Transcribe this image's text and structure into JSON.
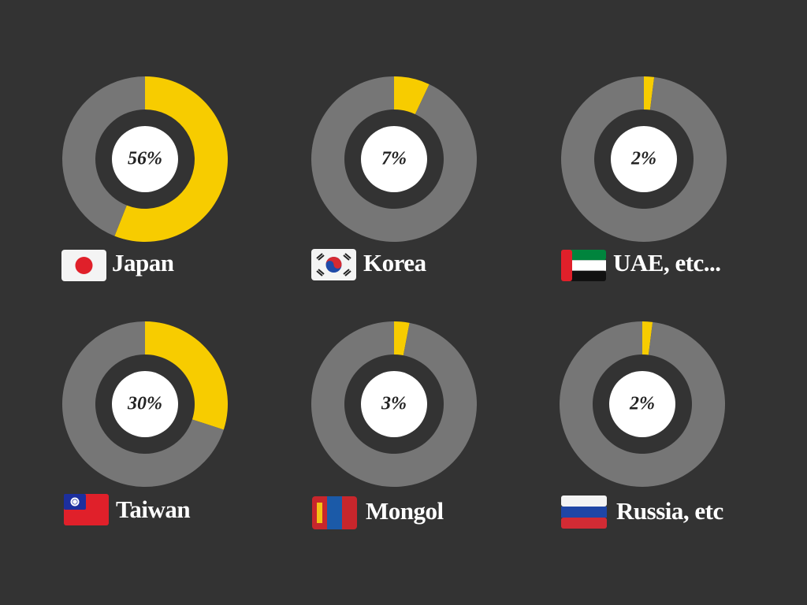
{
  "chart_data": [
    {
      "type": "pie",
      "title": "Japan",
      "values": [
        56,
        44
      ],
      "value_labels": [
        "56%",
        null
      ],
      "colors": [
        "#f7cc00",
        "#767676"
      ]
    },
    {
      "type": "pie",
      "title": "Korea",
      "values": [
        7,
        93
      ],
      "value_labels": [
        "7%",
        null
      ],
      "colors": [
        "#f7cc00",
        "#767676"
      ]
    },
    {
      "type": "pie",
      "title": "UAE, etc...",
      "values": [
        2,
        98
      ],
      "value_labels": [
        "2%",
        null
      ],
      "colors": [
        "#f7cc00",
        "#767676"
      ]
    },
    {
      "type": "pie",
      "title": "Taiwan",
      "values": [
        30,
        70
      ],
      "value_labels": [
        "30%",
        null
      ],
      "colors": [
        "#f7cc00",
        "#767676"
      ]
    },
    {
      "type": "pie",
      "title": "Mongol",
      "values": [
        3,
        97
      ],
      "value_labels": [
        "3%",
        null
      ],
      "colors": [
        "#f7cc00",
        "#767676"
      ]
    },
    {
      "type": "pie",
      "title": "Russia, etc",
      "values": [
        2,
        98
      ],
      "value_labels": [
        "2%",
        null
      ],
      "colors": [
        "#f7cc00",
        "#767676"
      ]
    }
  ]
}
